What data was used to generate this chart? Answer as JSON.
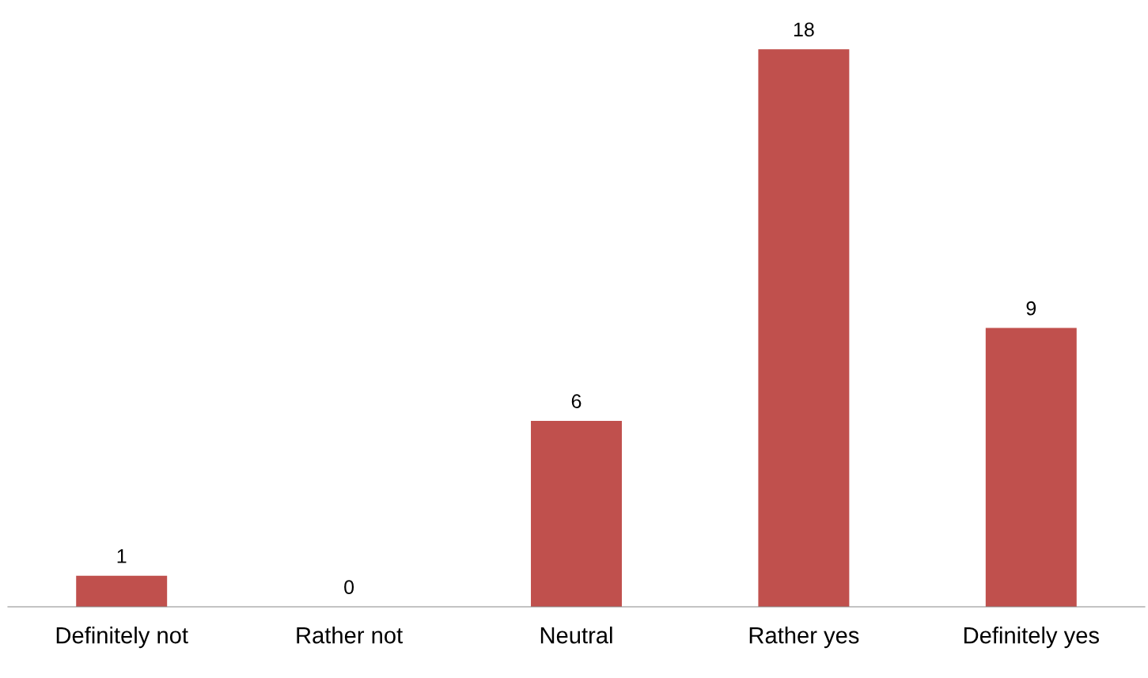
{
  "chart_data": {
    "type": "bar",
    "categories": [
      "Definitely not",
      "Rather not",
      "Neutral",
      "Rather yes",
      "Definitely yes"
    ],
    "values": [
      1,
      0,
      6,
      18,
      9
    ],
    "color": "#c0504d",
    "data_labels": true,
    "grid": false,
    "legend": false
  }
}
